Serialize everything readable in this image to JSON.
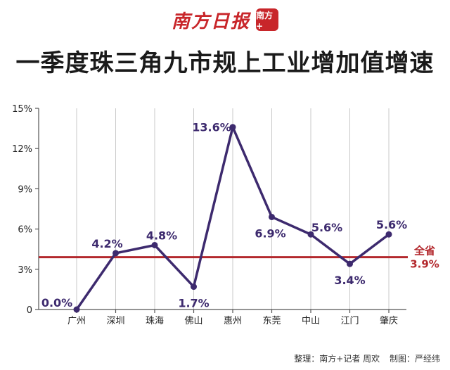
{
  "header": {
    "brand_name": "南方日报",
    "brand_badge": "南方+"
  },
  "footer": {
    "credit_editor": "整理：南方+记者 周欢",
    "credit_design": "制图：严经纬"
  },
  "colors": {
    "line": "#3d2a6e",
    "reference": "#b3282d",
    "axis": "#555555",
    "grid": "#c9c9c9"
  },
  "chart_data": {
    "type": "line",
    "title": "一季度珠三角九市规上工业增加值增速",
    "categories": [
      "广州",
      "深圳",
      "珠海",
      "佛山",
      "惠州",
      "东莞",
      "中山",
      "江门",
      "肇庆"
    ],
    "values": [
      0.0,
      4.2,
      4.8,
      1.7,
      13.6,
      6.9,
      5.6,
      3.4,
      5.6
    ],
    "data_labels": [
      "0.0%",
      "4.2%",
      "4.8%",
      "1.7%",
      "13.6%",
      "6.9%",
      "5.6%",
      "3.4%",
      "5.6%"
    ],
    "y_ticks": [
      0,
      3,
      6,
      9,
      12,
      15
    ],
    "y_tick_labels": [
      "0",
      "3%",
      "6%",
      "9%",
      "12%",
      "15%"
    ],
    "ylim": [
      0,
      15
    ],
    "reference_line": {
      "value": 3.9,
      "label_top": "全省",
      "label_bottom": "3.9%"
    },
    "grid": "vertical"
  }
}
